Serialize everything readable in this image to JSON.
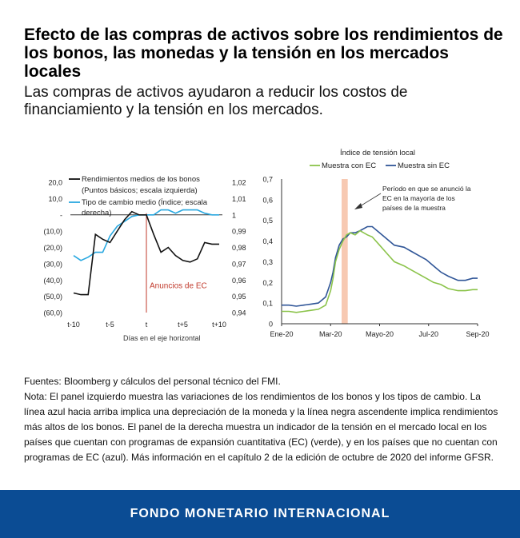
{
  "header": {
    "title": "Efecto de las compras de activos sobre los rendimientos de los bonos, las monedas y la tensión en los mercados locales",
    "subtitle": "Las compras de activos ayudaron a reducir los costos de financiamiento y la tensión en los mercados."
  },
  "chart_data": [
    {
      "type": "line",
      "x_categories": [
        "t-10",
        "t-5",
        "t",
        "t+5",
        "t+10"
      ],
      "x": [
        -10,
        -9,
        -8,
        -7,
        -6,
        -5,
        -4,
        -3,
        -2,
        -1,
        0,
        1,
        2,
        3,
        4,
        5,
        6,
        7,
        8,
        9,
        10
      ],
      "xlabel": "Días en el eje horizontal",
      "y_left_ticks": [
        "20,0",
        "10,0",
        "-",
        "(10,0)",
        "(20,0)",
        "(30,0)",
        "(40,0)",
        "(50,0)",
        "(60,0)"
      ],
      "y_left_range": [
        -60,
        20
      ],
      "y_right_ticks": [
        "1,02",
        "1,01",
        "1",
        "0,99",
        "0,98",
        "0,97",
        "0,96",
        "0,95",
        "0,94"
      ],
      "y_right_range": [
        0.94,
        1.02
      ],
      "annotation": "Anuncios de EC",
      "colors": {
        "bonds": "#111111",
        "fx": "#29a8e0",
        "event": "#c0392b"
      },
      "series": [
        {
          "name": "Rendimientos medios de los bonos",
          "legend_note": "(Puntos básicos; escala izquierda)",
          "axis": "left",
          "values": [
            -48,
            -49,
            -49,
            -12,
            -15,
            -17,
            -10,
            -3,
            2,
            0,
            0,
            -12,
            -23,
            -20,
            -25,
            -28,
            -29,
            -27,
            -17,
            -18,
            -18
          ]
        },
        {
          "name": "Tipo de cambio medio (Índice; escala derecha)",
          "axis": "right",
          "values": [
            0.975,
            0.972,
            0.974,
            0.977,
            0.977,
            0.987,
            0.993,
            0.996,
            0.999,
            1.0,
            1.0,
            1.0,
            1.003,
            1.003,
            1.001,
            1.003,
            1.003,
            1.003,
            1.001,
            1.0,
            1.0
          ]
        }
      ]
    },
    {
      "type": "line",
      "title": "Índice de tensión local",
      "x_categories": [
        "Ene-20",
        "Mar-20",
        "Mayo-20",
        "Jul-20",
        "Sep-20"
      ],
      "x": [
        0,
        0.3,
        0.6,
        0.9,
        1.2,
        1.5,
        1.8,
        2.0,
        2.1,
        2.2,
        2.35,
        2.5,
        2.65,
        2.8,
        3.0,
        3.2,
        3.5,
        3.7,
        4.0,
        4.3,
        4.6,
        5.0,
        5.3,
        5.6,
        5.9,
        6.2,
        6.5,
        6.8,
        7.2,
        7.5,
        7.8,
        8.0
      ],
      "x_units": "months since Ene-20",
      "ylim": [
        0,
        0.7
      ],
      "y_ticks": [
        "0",
        "0,1",
        "0,2",
        "0,3",
        "0,4",
        "0,5",
        "0,6",
        "0,7"
      ],
      "shaded_period": [
        2.45,
        2.7
      ],
      "annotation": "Período en que se anunció la EC en la mayoría de los países de la muestra",
      "colors": {
        "con": "#8bc34a",
        "sin": "#2f5597",
        "shade": "#f7c9b2"
      },
      "series": [
        {
          "name": "Muestra con EC",
          "values": [
            0.06,
            0.06,
            0.055,
            0.06,
            0.065,
            0.07,
            0.09,
            0.16,
            0.22,
            0.3,
            0.36,
            0.4,
            0.43,
            0.44,
            0.43,
            0.45,
            0.43,
            0.42,
            0.38,
            0.34,
            0.3,
            0.28,
            0.26,
            0.24,
            0.22,
            0.2,
            0.19,
            0.17,
            0.16,
            0.16,
            0.165,
            0.165
          ]
        },
        {
          "name": "Muestra sin EC",
          "values": [
            0.09,
            0.09,
            0.085,
            0.09,
            0.095,
            0.1,
            0.13,
            0.2,
            0.25,
            0.32,
            0.38,
            0.41,
            0.42,
            0.44,
            0.44,
            0.45,
            0.47,
            0.47,
            0.44,
            0.41,
            0.38,
            0.37,
            0.35,
            0.33,
            0.31,
            0.28,
            0.25,
            0.23,
            0.21,
            0.21,
            0.22,
            0.22
          ]
        }
      ]
    }
  ],
  "notes": {
    "source": "Fuentes: Bloomberg  y cálculos del personal técnico del FMI.",
    "note": "Nota: El panel izquierdo muestra las variaciones de los rendimientos de los bonos y los tipos de cambio. La línea azul hacia arriba implica una depreciación de la moneda y la línea negra ascendente implica rendimientos más altos de los bonos. El panel de la derecha muestra un indicador de la tensión en el mercado local en los países que cuentan con programas de expansión cuantitativa (EC) (verde), y en los países que no cuentan con programas de EC (azul). Más información en el capítulo 2 de la edición de octubre de 2020 del informe GFSR."
  },
  "footer": {
    "label": "FONDO MONETARIO INTERNACIONAL"
  }
}
